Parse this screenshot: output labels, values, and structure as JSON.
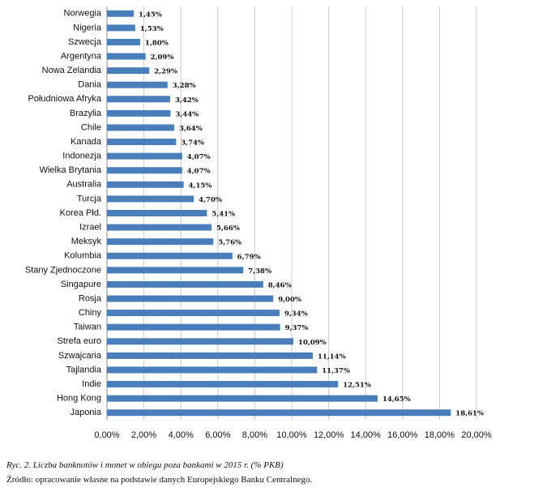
{
  "chart_data": {
    "type": "bar",
    "orientation": "horizontal",
    "caption": "Ryc. 2. Liczba banknotów i monet w obiegu poza bankami w 2015 r. (% PKB)",
    "source": "Źródło: opracowanie własne na podstawie danych Europejskiego Banku Centralnego.",
    "categories": [
      "Norwegia",
      "Nigeria",
      "Szwecja",
      "Argentyna",
      "Nowa Zelandia",
      "Dania",
      "Południowa Afryka",
      "Brazylia",
      "Chile",
      "Kanada",
      "Indonezja",
      "Wielka Brytania",
      "Australia",
      "Turcja",
      "Korea Płd.",
      "Izrael",
      "Meksyk",
      "Kolumbia",
      "Stany Zjednoczone",
      "Singapure",
      "Rosja",
      "Chiny",
      "Taiwan",
      "Strefa euro",
      "Szwajcaria",
      "Tajlandia",
      "Indie",
      "Hong Kong",
      "Japonia"
    ],
    "values": [
      1.45,
      1.53,
      1.8,
      2.09,
      2.29,
      3.28,
      3.42,
      3.44,
      3.64,
      3.74,
      4.07,
      4.07,
      4.15,
      4.7,
      5.41,
      5.66,
      5.76,
      6.79,
      7.38,
      8.46,
      9.0,
      9.34,
      9.37,
      10.09,
      11.14,
      11.37,
      12.51,
      14.65,
      18.61
    ],
    "value_labels": [
      "1,45%",
      "1,53%",
      "1,80%",
      "2,09%",
      "2,29%",
      "3,28%",
      "3,42%",
      "3,44%",
      "3,64%",
      "3,74%",
      "4,07%",
      "4,07%",
      "4,15%",
      "4,70%",
      "5,41%",
      "5,66%",
      "5,76%",
      "6,79%",
      "7,38%",
      "8,46%",
      "9,00%",
      "9,34%",
      "9,37%",
      "10,09%",
      "11,14%",
      "11,37%",
      "12,51%",
      "14,65%",
      "18,61%"
    ],
    "color": "#4a7ebb",
    "xlim": [
      0,
      20
    ],
    "xticks": [
      {
        "value": 0,
        "label": "0,00%"
      },
      {
        "value": 2,
        "label": "2,00%"
      },
      {
        "value": 4,
        "label": "4,00%"
      },
      {
        "value": 6,
        "label": "6,00%"
      },
      {
        "value": 8,
        "label": "8,00%"
      },
      {
        "value": 10,
        "label": "10,00%"
      },
      {
        "value": 12,
        "label": "12,00%"
      },
      {
        "value": 14,
        "label": "14,00%"
      },
      {
        "value": 16,
        "label": "16,00%"
      },
      {
        "value": 18,
        "label": "18,00%"
      },
      {
        "value": 20,
        "label": "20,00%"
      }
    ],
    "grid": true
  }
}
